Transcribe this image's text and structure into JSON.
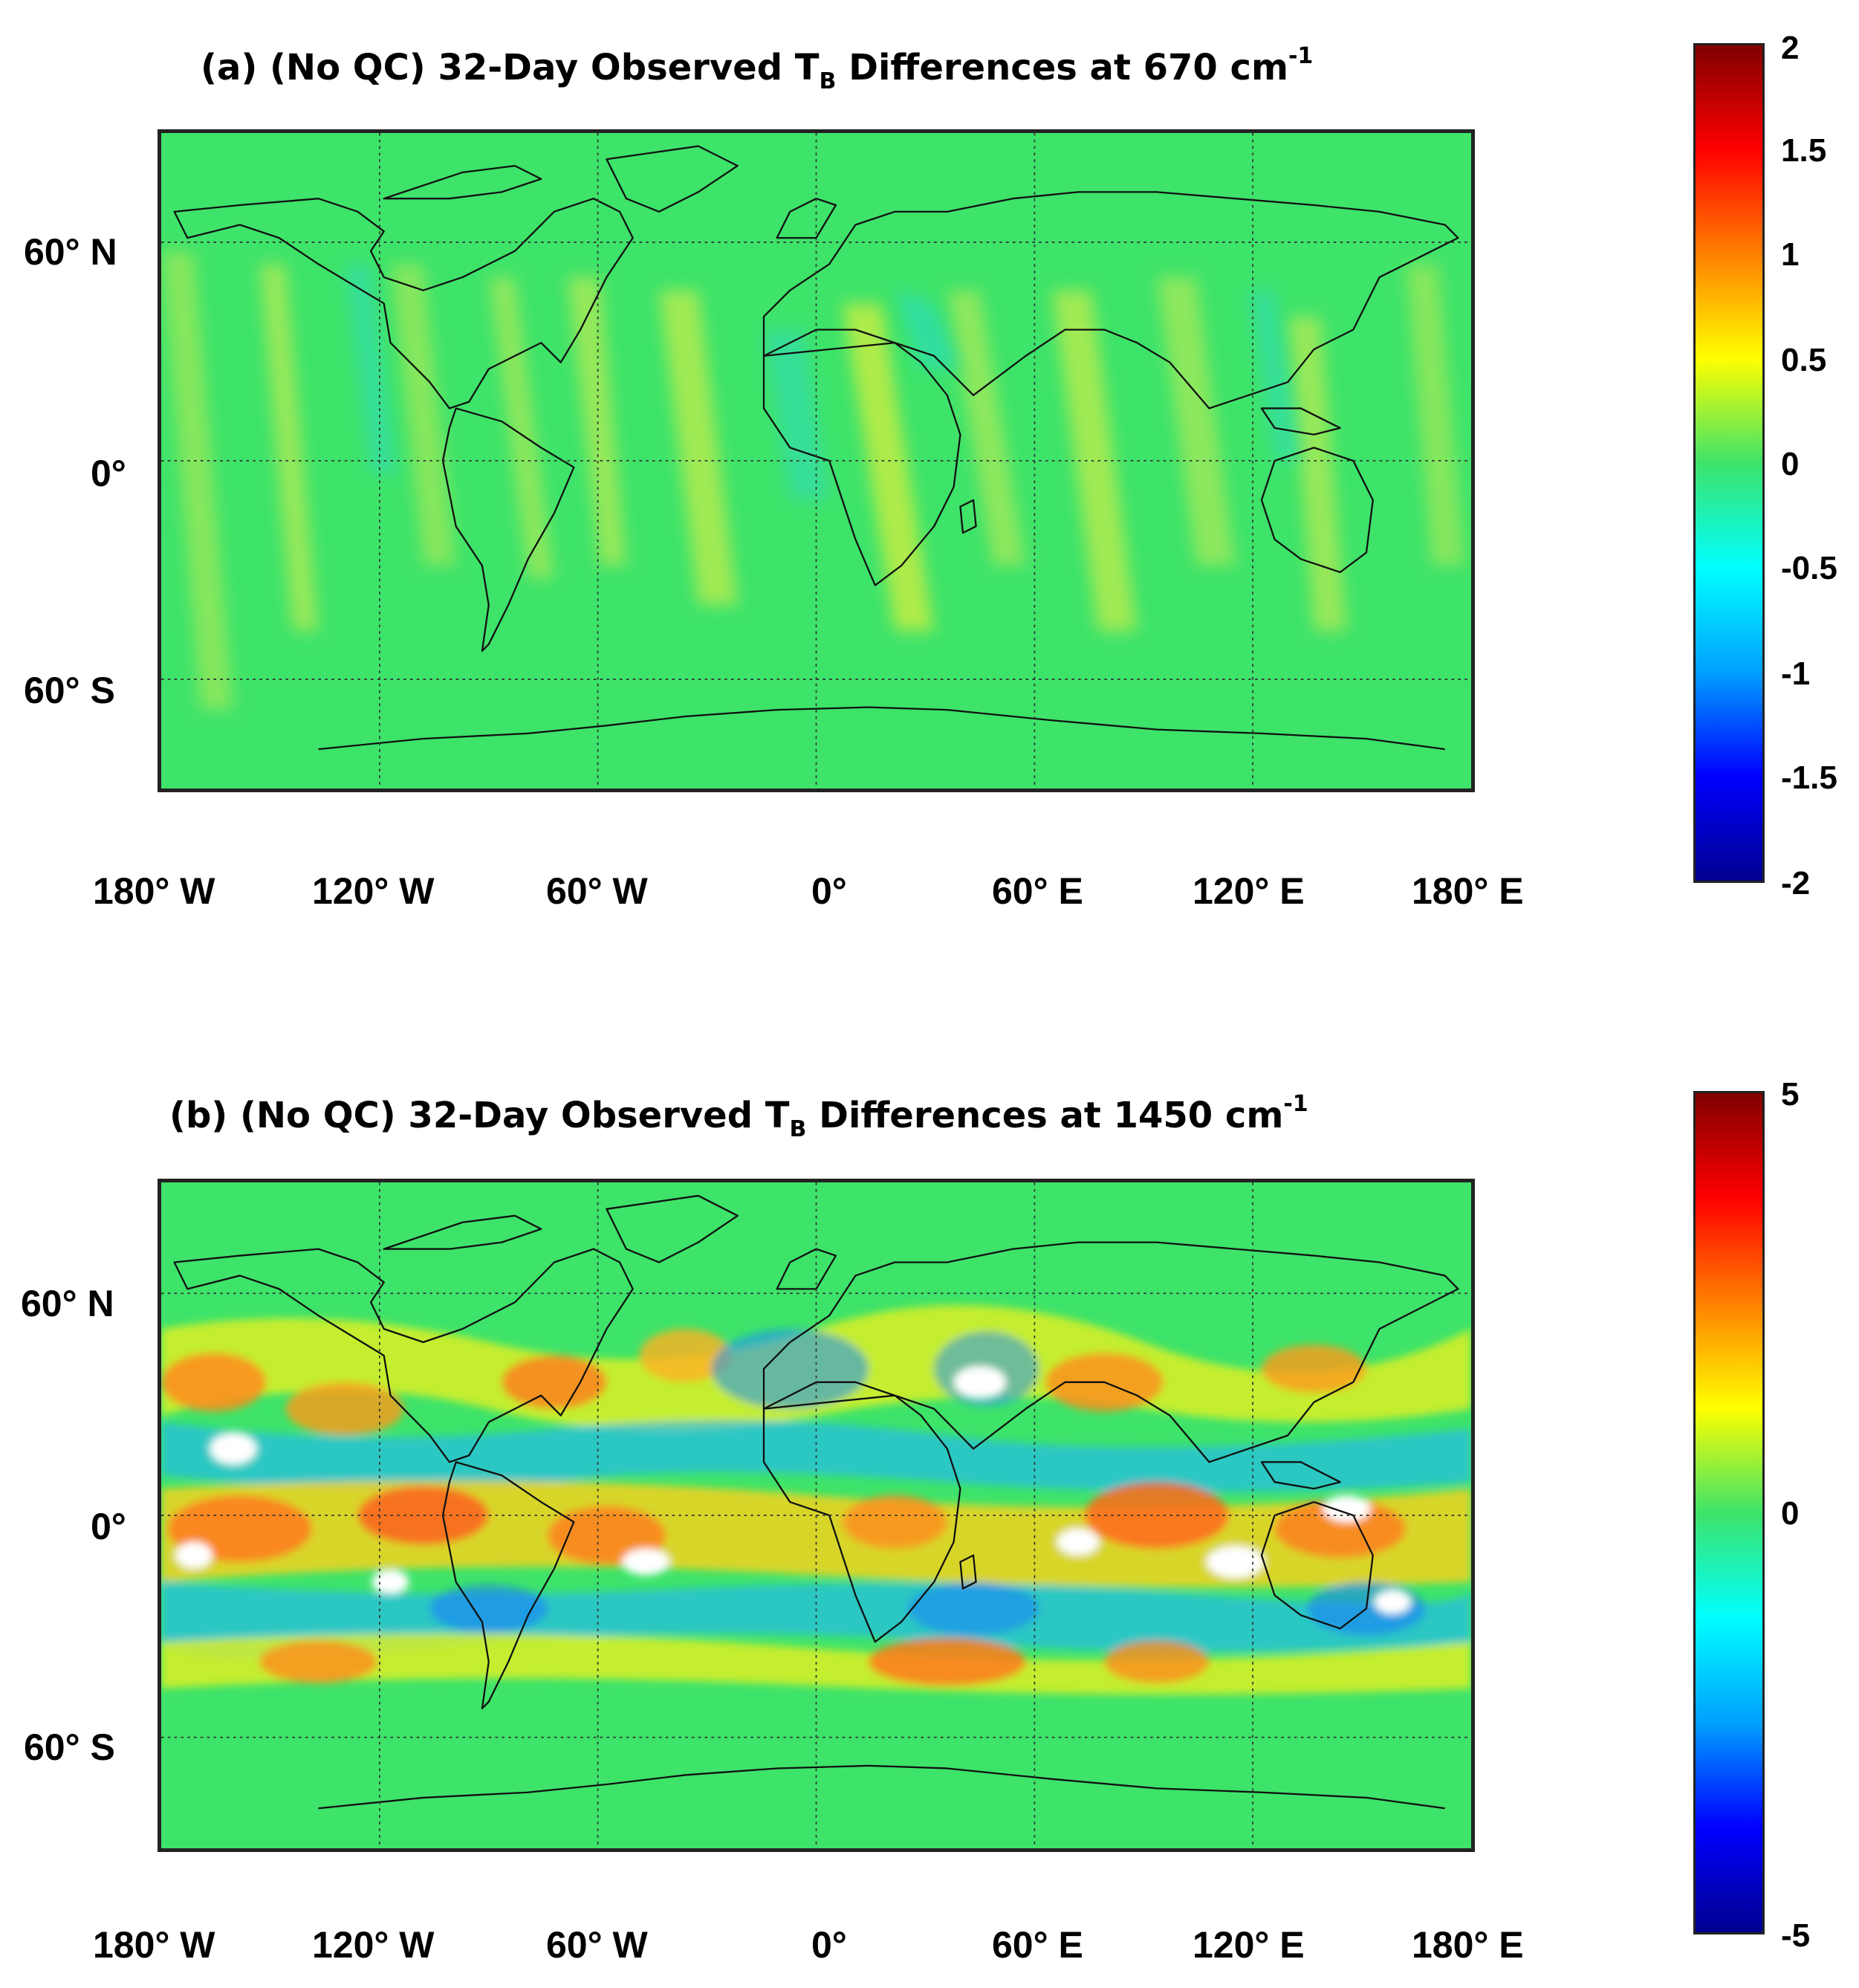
{
  "panels": [
    {
      "id": "a",
      "title_prefix": "(a) (No QC) 32-Day Observed T",
      "title_sub": "B",
      "title_mid": " Differences at 670 cm",
      "title_sup": "-1",
      "lat_labels": [
        "60° N",
        "0°",
        "60° S"
      ],
      "lon_labels": [
        "180° W",
        "120° W",
        "60° W",
        "0°",
        "60° E",
        "120° E",
        "180° E"
      ],
      "colorbar_ticks": [
        "2",
        "1.5",
        "1",
        "0.5",
        "0",
        "-0.5",
        "-1",
        "-1.5",
        "-2"
      ],
      "colorbar_range": [
        -2,
        2
      ]
    },
    {
      "id": "b",
      "title_prefix": "(b) (No QC) 32-Day Observed T",
      "title_sub": "B",
      "title_mid": " Differences at 1450 cm",
      "title_sup": "-1",
      "lat_labels": [
        "60° N",
        "0°",
        "60° S"
      ],
      "lon_labels": [
        "180° W",
        "120° W",
        "60° W",
        "0°",
        "60° E",
        "120° E",
        "180° E"
      ],
      "colorbar_ticks": [
        "5",
        "0",
        "-5"
      ],
      "colorbar_range": [
        -5,
        5
      ]
    }
  ],
  "colors": {
    "background_field": "#3ee36a",
    "colormap": [
      "#00008f",
      "#0000ff",
      "#00a0ff",
      "#00ffff",
      "#3ee36a",
      "#ffff00",
      "#ff8000",
      "#ff0000",
      "#800000"
    ]
  }
}
